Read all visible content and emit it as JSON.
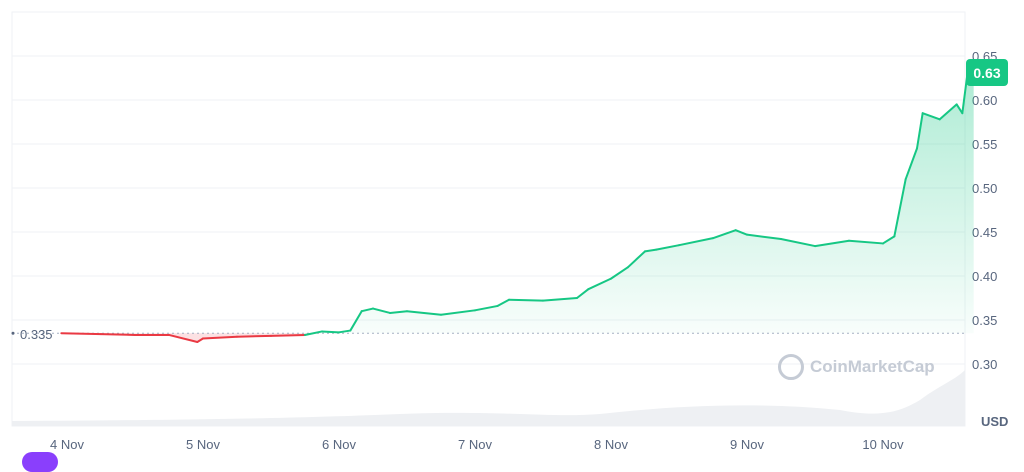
{
  "chart_data": {
    "type": "line",
    "x_ticks": [
      "4 Nov",
      "5 Nov",
      "6 Nov",
      "7 Nov",
      "8 Nov",
      "9 Nov",
      "10 Nov"
    ],
    "y_ticks": [
      "0.30",
      "0.35",
      "0.40",
      "0.45",
      "0.50",
      "0.55",
      "0.60",
      "0.65"
    ],
    "ylim": [
      0.3,
      0.65
    ],
    "unit_label": "USD",
    "baseline": 0.335,
    "baseline_label": "0.335",
    "current_price_label": "0.63",
    "grid": true,
    "colors": {
      "up": "#16c784",
      "down": "#ea3943",
      "grid": "#eff2f5"
    },
    "points": [
      [
        "3 Nov 23:00",
        0.335
      ],
      [
        "4 Nov 06:00",
        0.334
      ],
      [
        "4 Nov 12:00",
        0.333
      ],
      [
        "4 Nov 18:00",
        0.333
      ],
      [
        "4 Nov 23:00",
        0.325
      ],
      [
        "5 Nov 00:00",
        0.329
      ],
      [
        "5 Nov 06:00",
        0.331
      ],
      [
        "5 Nov 12:00",
        0.332
      ],
      [
        "5 Nov 18:00",
        0.333
      ],
      [
        "5 Nov 21:00",
        0.337
      ],
      [
        "6 Nov 00:00",
        0.336
      ],
      [
        "6 Nov 02:00",
        0.338
      ],
      [
        "6 Nov 04:00",
        0.36
      ],
      [
        "6 Nov 06:00",
        0.363
      ],
      [
        "6 Nov 09:00",
        0.358
      ],
      [
        "6 Nov 12:00",
        0.36
      ],
      [
        "6 Nov 18:00",
        0.356
      ],
      [
        "7 Nov 00:00",
        0.361
      ],
      [
        "7 Nov 04:00",
        0.366
      ],
      [
        "7 Nov 06:00",
        0.373
      ],
      [
        "7 Nov 12:00",
        0.372
      ],
      [
        "7 Nov 18:00",
        0.375
      ],
      [
        "7 Nov 20:00",
        0.385
      ],
      [
        "8 Nov 00:00",
        0.397
      ],
      [
        "8 Nov 03:00",
        0.41
      ],
      [
        "8 Nov 06:00",
        0.428
      ],
      [
        "8 Nov 08:00",
        0.43
      ],
      [
        "8 Nov 12:00",
        0.435
      ],
      [
        "8 Nov 18:00",
        0.443
      ],
      [
        "8 Nov 22:00",
        0.452
      ],
      [
        "9 Nov 00:00",
        0.447
      ],
      [
        "9 Nov 06:00",
        0.442
      ],
      [
        "9 Nov 12:00",
        0.434
      ],
      [
        "9 Nov 18:00",
        0.44
      ],
      [
        "10 Nov 00:00",
        0.437
      ],
      [
        "10 Nov 02:00",
        0.445
      ],
      [
        "10 Nov 04:00",
        0.51
      ],
      [
        "10 Nov 06:00",
        0.545
      ],
      [
        "10 Nov 07:00",
        0.585
      ],
      [
        "10 Nov 10:00",
        0.578
      ],
      [
        "10 Nov 13:00",
        0.595
      ],
      [
        "10 Nov 14:00",
        0.585
      ],
      [
        "10 Nov 15:00",
        0.635
      ],
      [
        "10 Nov 16:00",
        0.63
      ]
    ]
  },
  "watermark": "CoinMarketCap"
}
